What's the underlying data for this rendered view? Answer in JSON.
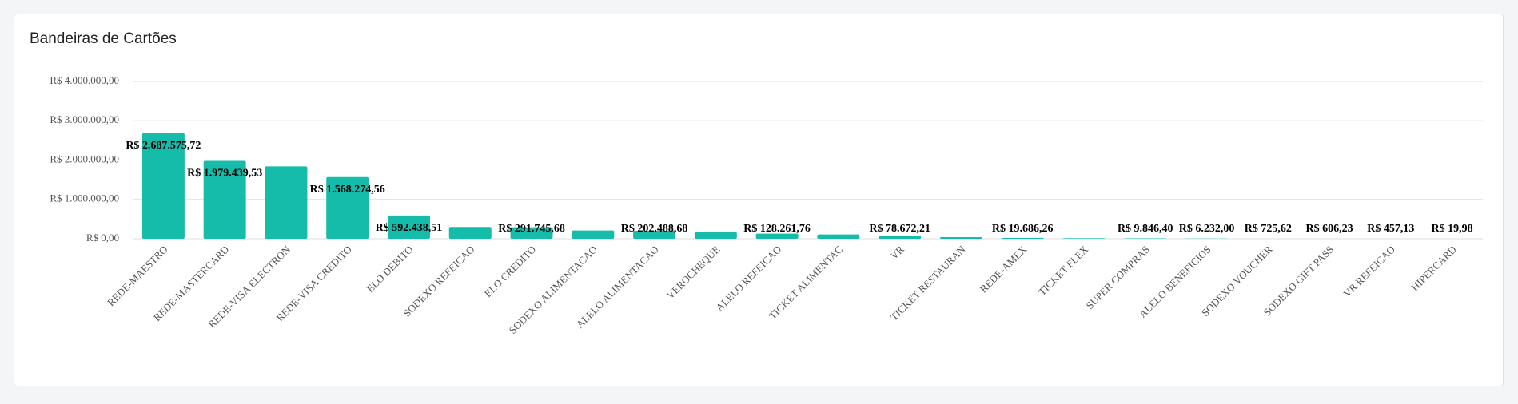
{
  "chart_data": {
    "type": "bar",
    "title": "Bandeiras de Cartões",
    "categories": [
      "REDE-MAESTRO",
      "REDE-MASTERCARD",
      "REDE-VISA ELECTRON",
      "REDE-VISA CREDITO",
      "ELO DEBITO",
      "SODEXO REFEICAO",
      "ELO CREDITO",
      "SODEXO ALIMENTACAO",
      "ALELO ALIMENTACAO",
      "VEROCHEQUE",
      "ALELO REFEICAO",
      "TICKET ALIMENTAC",
      "VR",
      "TICKET RESTAURAN",
      "REDE-AMEX",
      "TICKET FLEX",
      "SUPER COMPRAS",
      "ALELO BENEFICIOS",
      "SODEXO VOUCHER",
      "SODEXO GIFT PASS",
      "VR REFEICAO",
      "HIPERCARD"
    ],
    "values": [
      2687575.72,
      1979439.53,
      1840000,
      1568274.56,
      592438.51,
      300000,
      291745.68,
      210000,
      202488.68,
      170000,
      128261.76,
      110000,
      78672.21,
      40000,
      19686.26,
      12000,
      9846.4,
      6232.0,
      725.62,
      606.23,
      457.13,
      19.98
    ],
    "value_labels": [
      "R$ 2.687.575,72",
      "R$ 1.979.439,53",
      null,
      "R$ 1.568.274,56",
      "R$ 592.438,51",
      null,
      "R$ 291.745,68",
      null,
      "R$ 202.488,68",
      null,
      "R$ 128.261,76",
      null,
      "R$ 78.672,21",
      null,
      "R$ 19.686,26",
      null,
      "R$ 9.846,40",
      "R$ 6.232,00",
      "R$ 725,62",
      "R$ 606,23",
      "R$ 457,13",
      "R$ 19,98"
    ],
    "color": "#14bca9",
    "ylim": [
      0,
      4000000
    ],
    "yticks": [
      {
        "value": 0,
        "label": "R$ 0,00"
      },
      {
        "value": 1000000,
        "label": "R$ 1.000.000,00"
      },
      {
        "value": 2000000,
        "label": "R$ 2.000.000,00"
      },
      {
        "value": 3000000,
        "label": "R$ 3.000.000,00"
      },
      {
        "value": 4000000,
        "label": "R$ 4.000.000,00"
      }
    ],
    "grid": true
  }
}
